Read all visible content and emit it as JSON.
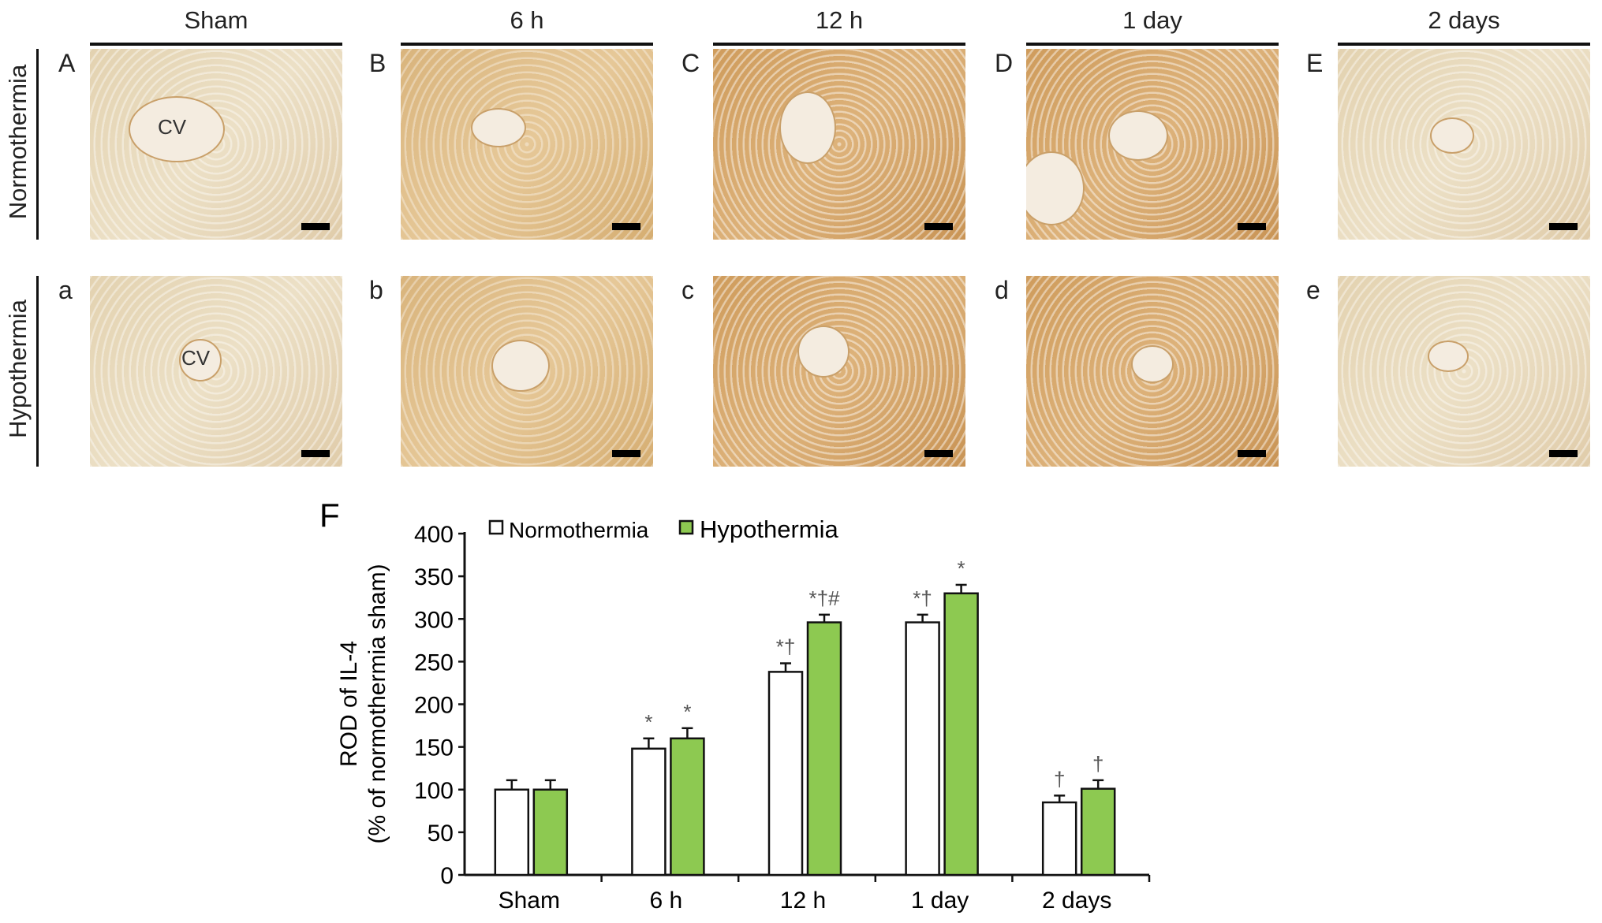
{
  "columns": [
    "Sham",
    "6 h",
    "12 h",
    "1 day",
    "2 days"
  ],
  "rows": [
    {
      "label": "Normothermia",
      "panels": [
        "A",
        "B",
        "C",
        "D",
        "E"
      ]
    },
    {
      "label": "Hypothermia",
      "panels": [
        "a",
        "b",
        "c",
        "d",
        "e"
      ]
    }
  ],
  "cv_label": "CV",
  "chart_data": {
    "panel_label": "F",
    "type": "bar",
    "categories": [
      "Sham",
      "6 h",
      "12 h",
      "1 day",
      "2 days"
    ],
    "series": [
      {
        "name": "Normothermia",
        "color": "#ffffff",
        "values": [
          100,
          148,
          238,
          296,
          85
        ],
        "errors": [
          11,
          12,
          10,
          9,
          8
        ],
        "annotations": [
          "",
          "*",
          "*†",
          "*†",
          "†"
        ]
      },
      {
        "name": "Hypothermia",
        "color": "#8dc951",
        "values": [
          100,
          160,
          296,
          330,
          101
        ],
        "errors": [
          11,
          12,
          9,
          10,
          10
        ],
        "annotations": [
          "",
          "*",
          "*†#",
          "*",
          "†"
        ]
      }
    ],
    "ylabel": "ROD of IL-4",
    "ylabel2": "(% of normothermia sham)",
    "ylim": [
      0,
      400
    ],
    "yticks": [
      0,
      50,
      100,
      150,
      200,
      250,
      300,
      350,
      400
    ],
    "grid": false,
    "legend": "top-left"
  }
}
